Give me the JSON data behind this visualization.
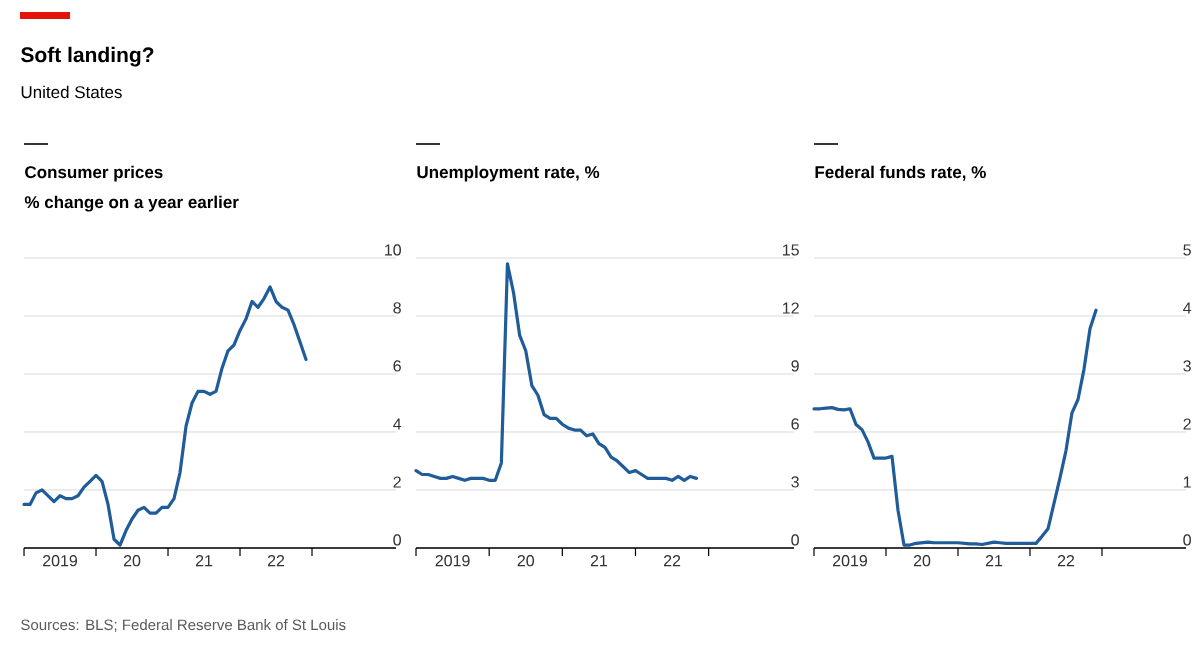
{
  "chart_data": [
    {
      "type": "other",
      "title": "Soft landing?",
      "subtitle": "United States",
      "annotations": [
        "Sources: BLS; Federal Reserve Bank of St Louis"
      ]
    },
    {
      "type": "line",
      "title": "Consumer prices",
      "ylabel": "% change on a year earlier",
      "color": "#1f5c99",
      "grid": "y",
      "x": [
        "2019-01",
        "2019-02",
        "2019-03",
        "2019-04",
        "2019-05",
        "2019-06",
        "2019-07",
        "2019-08",
        "2019-09",
        "2019-10",
        "2019-11",
        "2019-12",
        "2020-01",
        "2020-02",
        "2020-03",
        "2020-04",
        "2020-05",
        "2020-06",
        "2020-07",
        "2020-08",
        "2020-09",
        "2020-10",
        "2020-11",
        "2020-12",
        "2021-01",
        "2021-02",
        "2021-03",
        "2021-04",
        "2021-05",
        "2021-06",
        "2021-07",
        "2021-08",
        "2021-09",
        "2021-10",
        "2021-11",
        "2021-12",
        "2022-01",
        "2022-02",
        "2022-03",
        "2022-04",
        "2022-05",
        "2022-06",
        "2022-07",
        "2022-08",
        "2022-09",
        "2022-10",
        "2022-11",
        "2022-12"
      ],
      "values": [
        1.5,
        1.5,
        1.9,
        2.0,
        1.8,
        1.6,
        1.8,
        1.7,
        1.7,
        1.8,
        2.1,
        2.3,
        2.5,
        2.3,
        1.5,
        0.3,
        0.1,
        0.6,
        1.0,
        1.3,
        1.4,
        1.2,
        1.2,
        1.4,
        1.4,
        1.7,
        2.6,
        4.2,
        5.0,
        5.4,
        5.4,
        5.3,
        5.4,
        6.2,
        6.8,
        7.0,
        7.5,
        7.9,
        8.5,
        8.3,
        8.6,
        9.0,
        8.5,
        8.3,
        8.2,
        7.7,
        7.1,
        6.5
      ],
      "xlim": [
        "2019-01-01",
        "2024-03-01"
      ],
      "xticks": [
        {
          "value": "2019-01-01",
          "label": null
        },
        {
          "value": "2019-07-01",
          "label": "2019"
        },
        {
          "value": "2020-01-01",
          "label": null
        },
        {
          "value": "2020-07-01",
          "label": "20"
        },
        {
          "value": "2021-01-01",
          "label": null
        },
        {
          "value": "2021-07-01",
          "label": "21"
        },
        {
          "value": "2022-01-01",
          "label": null
        },
        {
          "value": "2022-07-01",
          "label": "22"
        },
        {
          "value": "2023-01-01",
          "label": null
        }
      ],
      "ylim": [
        0,
        10
      ],
      "yticks": [
        0,
        2,
        4,
        6,
        8,
        10
      ]
    },
    {
      "type": "line",
      "title": "Unemployment rate, %",
      "color": "#1f5c99",
      "grid": "y",
      "x": [
        "2019-01",
        "2019-02",
        "2019-03",
        "2019-04",
        "2019-05",
        "2019-06",
        "2019-07",
        "2019-08",
        "2019-09",
        "2019-10",
        "2019-11",
        "2019-12",
        "2020-01",
        "2020-02",
        "2020-03",
        "2020-04",
        "2020-05",
        "2020-06",
        "2020-07",
        "2020-08",
        "2020-09",
        "2020-10",
        "2020-11",
        "2020-12",
        "2021-01",
        "2021-02",
        "2021-03",
        "2021-04",
        "2021-05",
        "2021-06",
        "2021-07",
        "2021-08",
        "2021-09",
        "2021-10",
        "2021-11",
        "2021-12",
        "2022-01",
        "2022-02",
        "2022-03",
        "2022-04",
        "2022-05",
        "2022-06",
        "2022-07",
        "2022-08",
        "2022-09",
        "2022-10",
        "2022-11"
      ],
      "values": [
        4.0,
        3.8,
        3.8,
        3.7,
        3.6,
        3.6,
        3.7,
        3.6,
        3.5,
        3.6,
        3.6,
        3.6,
        3.5,
        3.5,
        4.4,
        14.7,
        13.2,
        11.0,
        10.2,
        8.4,
        7.9,
        6.9,
        6.7,
        6.7,
        6.4,
        6.2,
        6.1,
        6.1,
        5.8,
        5.9,
        5.4,
        5.2,
        4.7,
        4.5,
        4.2,
        3.9,
        4.0,
        3.8,
        3.6,
        3.6,
        3.6,
        3.6,
        3.5,
        3.7,
        3.5,
        3.7,
        3.6
      ],
      "xlim": [
        "2019-01-01",
        "2024-03-01"
      ],
      "xticks": [
        {
          "value": "2019-01-01",
          "label": null
        },
        {
          "value": "2019-07-01",
          "label": "2019"
        },
        {
          "value": "2020-01-01",
          "label": null
        },
        {
          "value": "2020-07-01",
          "label": "20"
        },
        {
          "value": "2021-01-01",
          "label": null
        },
        {
          "value": "2021-07-01",
          "label": "21"
        },
        {
          "value": "2022-01-01",
          "label": null
        },
        {
          "value": "2022-07-01",
          "label": "22"
        },
        {
          "value": "2023-01-01",
          "label": null
        }
      ],
      "ylim": [
        0,
        15
      ],
      "yticks": [
        0,
        3,
        6,
        9,
        12,
        15
      ]
    },
    {
      "type": "line",
      "title": "Federal funds rate, %",
      "color": "#1f5c99",
      "grid": "y",
      "x": [
        "2019-01",
        "2019-02",
        "2019-03",
        "2019-04",
        "2019-05",
        "2019-06",
        "2019-07",
        "2019-08",
        "2019-09",
        "2019-10",
        "2019-11",
        "2019-12",
        "2020-01",
        "2020-02",
        "2020-03",
        "2020-04",
        "2020-05",
        "2020-06",
        "2020-07",
        "2020-08",
        "2020-09",
        "2020-10",
        "2020-11",
        "2020-12",
        "2021-01",
        "2021-02",
        "2021-03",
        "2021-04",
        "2021-05",
        "2021-06",
        "2021-07",
        "2021-08",
        "2021-09",
        "2021-10",
        "2021-11",
        "2021-12",
        "2022-01",
        "2022-02",
        "2022-03",
        "2022-04",
        "2022-05",
        "2022-06",
        "2022-07",
        "2022-08",
        "2022-09",
        "2022-10",
        "2022-11",
        "2022-12"
      ],
      "values": [
        2.4,
        2.4,
        2.41,
        2.42,
        2.39,
        2.38,
        2.4,
        2.13,
        2.04,
        1.83,
        1.55,
        1.55,
        1.55,
        1.58,
        0.65,
        0.05,
        0.05,
        0.08,
        0.09,
        0.1,
        0.09,
        0.09,
        0.09,
        0.09,
        0.09,
        0.08,
        0.07,
        0.07,
        0.06,
        0.08,
        0.1,
        0.09,
        0.08,
        0.08,
        0.08,
        0.08,
        0.08,
        0.08,
        0.2,
        0.33,
        0.77,
        1.21,
        1.68,
        2.33,
        2.56,
        3.08,
        3.78,
        4.1
      ],
      "xlim": [
        "2019-01-01",
        "2024-03-01"
      ],
      "xticks": [
        {
          "value": "2019-01-01",
          "label": null
        },
        {
          "value": "2019-07-01",
          "label": "2019"
        },
        {
          "value": "2020-01-01",
          "label": null
        },
        {
          "value": "2020-07-01",
          "label": "20"
        },
        {
          "value": "2021-01-01",
          "label": null
        },
        {
          "value": "2021-07-01",
          "label": "21"
        },
        {
          "value": "2022-01-01",
          "label": null
        },
        {
          "value": "2022-07-01",
          "label": "22"
        },
        {
          "value": "2023-01-01",
          "label": null
        }
      ],
      "ylim": [
        0,
        5
      ],
      "yticks": [
        0,
        1,
        2,
        3,
        4,
        5
      ]
    }
  ]
}
